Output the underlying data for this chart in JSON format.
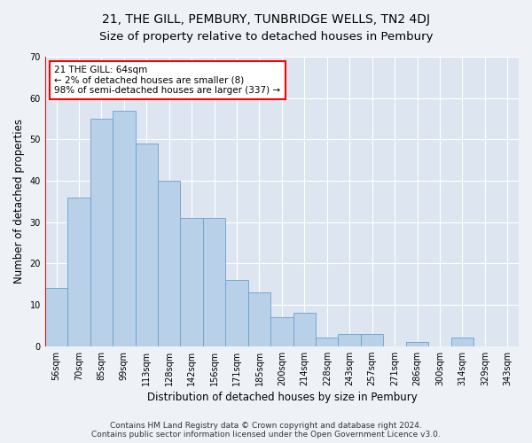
{
  "title": "21, THE GILL, PEMBURY, TUNBRIDGE WELLS, TN2 4DJ",
  "subtitle": "Size of property relative to detached houses in Pembury",
  "xlabel": "Distribution of detached houses by size in Pembury",
  "ylabel": "Number of detached properties",
  "categories": [
    "56sqm",
    "70sqm",
    "85sqm",
    "99sqm",
    "113sqm",
    "128sqm",
    "142sqm",
    "156sqm",
    "171sqm",
    "185sqm",
    "200sqm",
    "214sqm",
    "228sqm",
    "243sqm",
    "257sqm",
    "271sqm",
    "286sqm",
    "300sqm",
    "314sqm",
    "329sqm",
    "343sqm"
  ],
  "values": [
    14,
    36,
    55,
    57,
    49,
    40,
    31,
    31,
    16,
    13,
    7,
    8,
    2,
    3,
    3,
    0,
    1,
    0,
    2,
    0,
    0
  ],
  "bar_color": "#b8d0e8",
  "bar_edge_color": "#6aa0cc",
  "annotation_line1": "21 THE GILL: 64sqm",
  "annotation_line2": "← 2% of detached houses are smaller (8)",
  "annotation_line3": "98% of semi-detached houses are larger (337) →",
  "annotation_box_color": "white",
  "annotation_box_edge_color": "red",
  "vline_color": "red",
  "ylim": [
    0,
    70
  ],
  "yticks": [
    0,
    10,
    20,
    30,
    40,
    50,
    60,
    70
  ],
  "footer_line1": "Contains HM Land Registry data © Crown copyright and database right 2024.",
  "footer_line2": "Contains public sector information licensed under the Open Government Licence v3.0.",
  "bg_color": "#eef2f7",
  "plot_bg_color": "#dde6f0",
  "title_fontsize": 10,
  "subtitle_fontsize": 9.5,
  "axis_label_fontsize": 8.5,
  "tick_fontsize": 7,
  "footer_fontsize": 6.5
}
